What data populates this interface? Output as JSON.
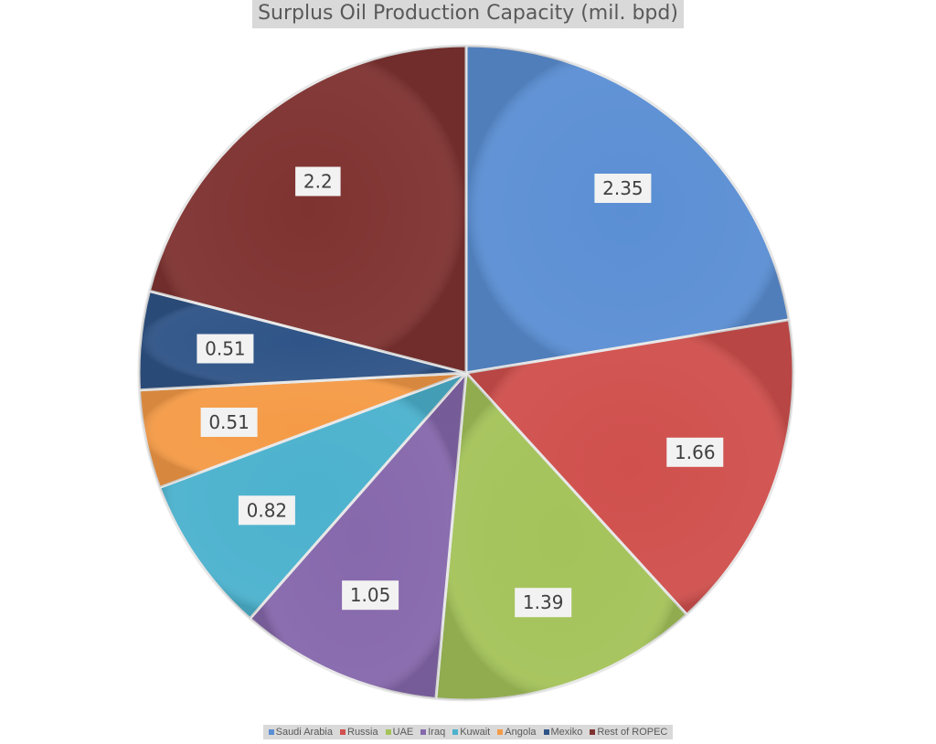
{
  "chart_data": {
    "type": "pie",
    "title": "Surplus Oil Production Capacity (mil. bpd)",
    "categories": [
      "Saudi Arabia",
      "Russia",
      "UAE",
      "Iraq",
      "Kuwait",
      "Angola",
      "Mexiko",
      "Rest of ROPEC"
    ],
    "values": [
      2.35,
      1.66,
      1.39,
      1.05,
      0.82,
      0.51,
      0.51,
      2.2
    ],
    "data_labels": [
      "2.35",
      "1.66",
      "1.39",
      "1.05",
      "0.82",
      "0.51",
      "0.51",
      "2.2"
    ],
    "colors": [
      "#5b8fd4",
      "#d0504d",
      "#a4c35a",
      "#8668ac",
      "#4cb2ce",
      "#f59b47",
      "#2f5487",
      "#7f3331"
    ],
    "legend_position": "bottom",
    "start_angle": "12 o'clock",
    "direction": "clockwise"
  }
}
